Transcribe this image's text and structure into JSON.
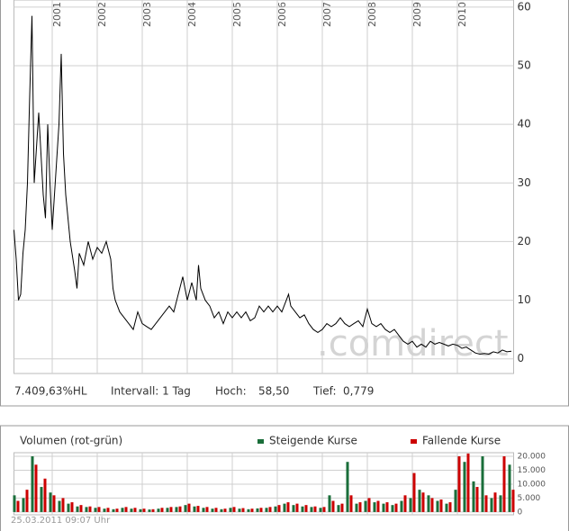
{
  "chart_data": [
    {
      "type": "line",
      "color": "#000000",
      "grid": true,
      "xlim": [
        2000.15,
        2011.25
      ],
      "xticks": [
        2001,
        2002,
        2003,
        2004,
        2005,
        2006,
        2007,
        2008,
        2009,
        2010
      ],
      "ylim": [
        -2.5,
        61.2
      ],
      "yticks": [
        0,
        10,
        20,
        30,
        40,
        50,
        60
      ],
      "x": [
        2000.15,
        2000.2,
        2000.25,
        2000.3,
        2000.35,
        2000.4,
        2000.45,
        2000.5,
        2000.55,
        2000.6,
        2000.7,
        2000.75,
        2000.8,
        2000.85,
        2000.9,
        2000.95,
        2001.0,
        2001.05,
        2001.15,
        2001.2,
        2001.25,
        2001.3,
        2001.4,
        2001.5,
        2001.55,
        2001.6,
        2001.7,
        2001.8,
        2001.9,
        2002.0,
        2002.1,
        2002.2,
        2002.3,
        2002.35,
        2002.4,
        2002.5,
        2002.6,
        2002.7,
        2002.8,
        2002.9,
        2003.0,
        2003.1,
        2003.2,
        2003.3,
        2003.4,
        2003.5,
        2003.6,
        2003.7,
        2003.8,
        2003.9,
        2004.0,
        2004.1,
        2004.2,
        2004.25,
        2004.3,
        2004.4,
        2004.5,
        2004.6,
        2004.7,
        2004.8,
        2004.9,
        2005.0,
        2005.1,
        2005.2,
        2005.3,
        2005.4,
        2005.5,
        2005.6,
        2005.7,
        2005.8,
        2005.9,
        2006.0,
        2006.1,
        2006.2,
        2006.25,
        2006.3,
        2006.4,
        2006.5,
        2006.6,
        2006.7,
        2006.8,
        2006.9,
        2007.0,
        2007.1,
        2007.2,
        2007.3,
        2007.4,
        2007.5,
        2007.6,
        2007.7,
        2007.8,
        2007.9,
        2008.0,
        2008.1,
        2008.2,
        2008.3,
        2008.4,
        2008.5,
        2008.6,
        2008.7,
        2008.8,
        2008.9,
        2009.0,
        2009.1,
        2009.2,
        2009.3,
        2009.4,
        2009.5,
        2009.6,
        2009.7,
        2009.8,
        2009.9,
        2010.0,
        2010.1,
        2010.2,
        2010.3,
        2010.4,
        2010.5,
        2010.6,
        2010.7,
        2010.8,
        2010.9,
        2011.0,
        2011.1,
        2011.2
      ],
      "values": [
        22,
        17,
        10,
        11,
        18,
        22,
        30,
        45,
        58.5,
        30,
        42,
        35,
        28,
        24,
        40,
        30,
        22,
        28,
        40,
        52,
        35,
        28,
        20,
        15,
        12,
        18,
        16,
        20,
        17,
        19,
        18,
        20,
        17,
        12,
        10,
        8,
        7,
        6,
        5,
        8,
        6,
        5.5,
        5,
        6,
        7,
        8,
        9,
        8,
        11,
        14,
        10,
        13,
        10,
        16,
        12,
        10,
        9,
        7,
        8,
        6,
        8,
        7,
        8,
        7,
        8,
        6.5,
        7,
        9,
        8,
        9,
        8,
        9,
        8,
        10,
        11,
        9,
        8,
        7,
        7.5,
        6,
        5,
        4.5,
        5,
        6,
        5.5,
        6,
        7,
        6,
        5.5,
        6,
        6.5,
        5.5,
        8.5,
        6,
        5.5,
        6,
        5,
        4.5,
        5,
        4,
        3,
        2.5,
        3,
        2,
        2.5,
        2,
        3,
        2.5,
        2.8,
        2.5,
        2.2,
        2.5,
        2.3,
        1.8,
        2,
        1.5,
        1,
        0.8,
        0.9,
        0.8,
        1.2,
        1,
        1.5,
        1.2,
        1.3
      ]
    },
    {
      "type": "bar",
      "title": "Volumen (rot-grün)",
      "grid": true,
      "xlim": [
        2000.15,
        2011.25
      ],
      "xticks": [
        2001,
        2002,
        2003,
        2004,
        2005,
        2006,
        2007,
        2008,
        2009,
        2010
      ],
      "ylim": [
        -1000,
        21300
      ],
      "yticks": [
        0,
        {
          "value": 5000,
          "label": "5.000"
        },
        {
          "value": 10000,
          "label": "10.000"
        },
        {
          "value": 15000,
          "label": "15.000"
        },
        {
          "value": 20000,
          "label": "20.000"
        }
      ],
      "x": [
        2000.2,
        2000.4,
        2000.6,
        2000.8,
        2001.0,
        2001.2,
        2001.4,
        2001.6,
        2001.8,
        2002.0,
        2002.2,
        2002.4,
        2002.6,
        2002.8,
        2003.0,
        2003.2,
        2003.4,
        2003.6,
        2003.8,
        2004.0,
        2004.2,
        2004.4,
        2004.6,
        2004.8,
        2005.0,
        2005.2,
        2005.4,
        2005.6,
        2005.8,
        2006.0,
        2006.2,
        2006.4,
        2006.6,
        2006.8,
        2007.0,
        2007.2,
        2007.4,
        2007.6,
        2007.8,
        2008.0,
        2008.2,
        2008.4,
        2008.6,
        2008.8,
        2009.0,
        2009.2,
        2009.4,
        2009.6,
        2009.8,
        2010.0,
        2010.2,
        2010.4,
        2010.6,
        2010.8,
        2011.0,
        2011.2
      ],
      "series": [
        {
          "name": "Steigende Kurse",
          "color": "#1a6e3a",
          "values": [
            6000,
            5000,
            20000,
            9000,
            7000,
            4000,
            3000,
            2000,
            1800,
            1500,
            1200,
            1000,
            1500,
            1200,
            1000,
            900,
            1200,
            1500,
            1800,
            2500,
            2000,
            1500,
            1200,
            1000,
            1500,
            1200,
            1000,
            1300,
            1500,
            2000,
            3000,
            2500,
            2000,
            1800,
            1500,
            6000,
            2500,
            18000,
            3000,
            4000,
            3500,
            3000,
            2500,
            4000,
            5000,
            8000,
            6000,
            4000,
            3000,
            8000,
            18000,
            11000,
            20000,
            5000,
            6000,
            17000
          ]
        },
        {
          "name": "Fallende Kurse",
          "color": "#cc0000",
          "values": [
            4000,
            8000,
            17000,
            12000,
            6000,
            5000,
            3500,
            2500,
            2000,
            1800,
            1500,
            1200,
            1800,
            1500,
            1200,
            1000,
            1500,
            1800,
            2000,
            3000,
            2200,
            1800,
            1500,
            1200,
            1800,
            1400,
            1200,
            1500,
            1800,
            2500,
            3500,
            3000,
            2500,
            2000,
            1800,
            4000,
            3000,
            6000,
            3500,
            5000,
            4000,
            3500,
            3000,
            6000,
            14000,
            7000,
            5000,
            4500,
            3500,
            20000,
            21000,
            9000,
            6000,
            7000,
            20000,
            8000
          ]
        }
      ]
    }
  ],
  "watermark": ".comdirect",
  "stats": {
    "change": "7.409,63%HL",
    "interval": "Intervall: 1 Tag",
    "high_label": "Hoch:",
    "high": "58,50",
    "low_label": "Tief:",
    "low": "0,779"
  },
  "timestamp": "25.03.2011 09:07 Uhr"
}
